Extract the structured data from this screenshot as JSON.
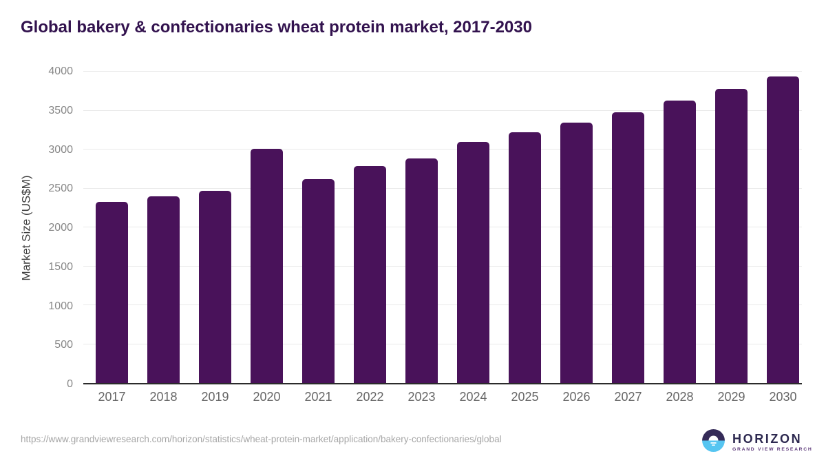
{
  "title": "Global bakery & confectionaries wheat protein market, 2017-2030",
  "chart_data": {
    "type": "bar",
    "title": "Global bakery & confectionaries wheat protein market, 2017-2030",
    "categories": [
      "2017",
      "2018",
      "2019",
      "2020",
      "2021",
      "2022",
      "2023",
      "2024",
      "2025",
      "2026",
      "2027",
      "2028",
      "2029",
      "2030"
    ],
    "values": [
      2330,
      2395,
      2465,
      3005,
      2620,
      2785,
      2885,
      3100,
      3220,
      3345,
      3475,
      3625,
      3775,
      3935
    ],
    "xlabel": "",
    "ylabel": "Market Size (US$M)",
    "ylim": [
      0,
      4000
    ],
    "yticks": [
      0,
      500,
      1000,
      1500,
      2000,
      2500,
      3000,
      3500,
      4000
    ],
    "grid": "horizontal",
    "legend": "none",
    "bar_color": "#49125a"
  },
  "colors": {
    "title": "#32124e",
    "bar": "#49125a",
    "gridline": "#e9e9e9",
    "axis_line": "#2b2b2b",
    "tick_label": "#878787",
    "background": "#ffffff"
  },
  "footer": {
    "source_url": "https://www.grandviewresearch.com/horizon/statistics/wheat-protein-market/application/bakery-confectionaries/global",
    "logo": {
      "brand": "HORIZON",
      "sub_brand": "GRAND VIEW RESEARCH",
      "icon": "sunset-horizon-icon",
      "icon_top_color": "#352b58",
      "icon_bottom_color": "#56c5f1"
    }
  }
}
